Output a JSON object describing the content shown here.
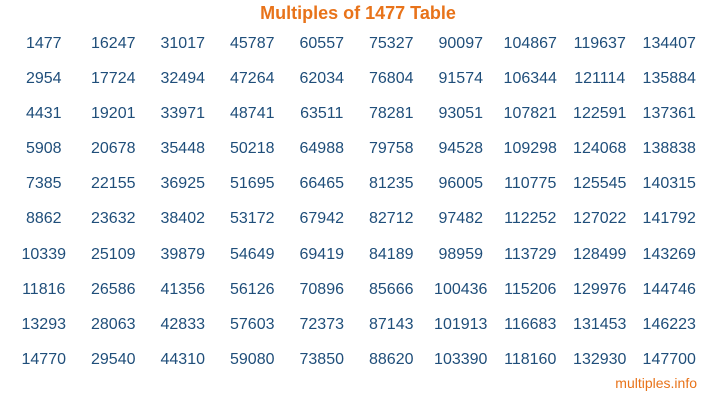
{
  "title": "Multiples of 1477 Table",
  "footer": "multiples.info",
  "colors": {
    "title": "#e8731a",
    "numbers": "#1f4e7a"
  },
  "columns": [
    [
      "1477",
      "2954",
      "4431",
      "5908",
      "7385",
      "8862",
      "10339",
      "11816",
      "13293",
      "14770"
    ],
    [
      "16247",
      "17724",
      "19201",
      "20678",
      "22155",
      "23632",
      "25109",
      "26586",
      "28063",
      "29540"
    ],
    [
      "31017",
      "32494",
      "33971",
      "35448",
      "36925",
      "38402",
      "39879",
      "41356",
      "42833",
      "44310"
    ],
    [
      "45787",
      "47264",
      "48741",
      "50218",
      "51695",
      "53172",
      "54649",
      "56126",
      "57603",
      "59080"
    ],
    [
      "60557",
      "62034",
      "63511",
      "64988",
      "66465",
      "67942",
      "69419",
      "70896",
      "72373",
      "73850"
    ],
    [
      "75327",
      "76804",
      "78281",
      "79758",
      "81235",
      "82712",
      "84189",
      "85666",
      "87143",
      "88620"
    ],
    [
      "90097",
      "91574",
      "93051",
      "94528",
      "96005",
      "97482",
      "98959",
      "100436",
      "101913",
      "103390"
    ],
    [
      "104867",
      "106344",
      "107821",
      "109298",
      "110775",
      "112252",
      "113729",
      "115206",
      "116683",
      "118160"
    ],
    [
      "119637",
      "121114",
      "122591",
      "124068",
      "125545",
      "127022",
      "128499",
      "129976",
      "131453",
      "132930"
    ],
    [
      "134407",
      "135884",
      "137361",
      "138838",
      "140315",
      "141792",
      "143269",
      "144746",
      "146223",
      "147700"
    ]
  ]
}
